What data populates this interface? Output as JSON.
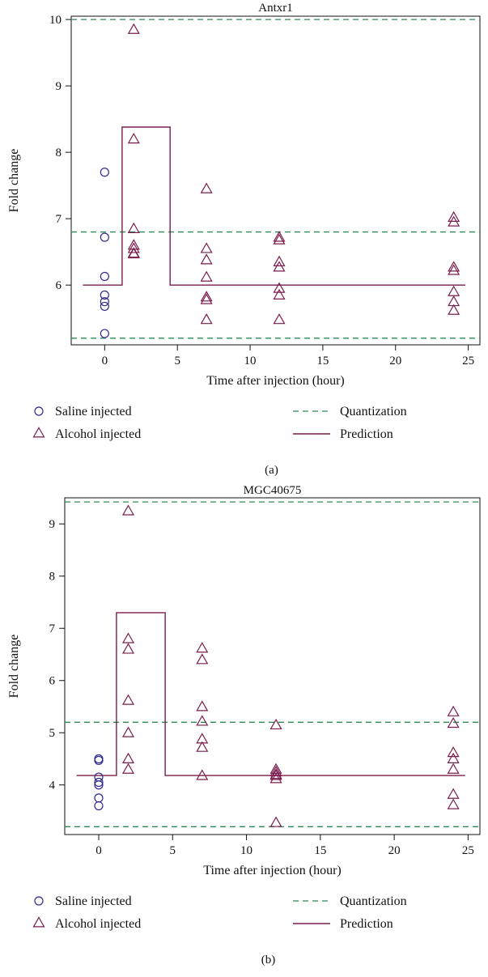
{
  "chart_data": [
    {
      "type": "scatter",
      "title": "Antxr1",
      "xlabel": "Time after injection (hour)",
      "ylabel": "Fold change",
      "xlim": [
        -2.3,
        25.8
      ],
      "ylim": [
        5.1,
        10.05
      ],
      "xticks": [
        0,
        5,
        10,
        15,
        20,
        25
      ],
      "yticks": [
        6,
        7,
        8,
        9,
        10
      ],
      "series": [
        {
          "name": "Saline injected",
          "marker": "circle",
          "color": "#2e2a8f",
          "points": [
            [
              0,
              7.7
            ],
            [
              0,
              6.72
            ],
            [
              0,
              6.13
            ],
            [
              0,
              5.85
            ],
            [
              0,
              5.75
            ],
            [
              0,
              5.68
            ],
            [
              0,
              5.27
            ]
          ]
        },
        {
          "name": "Alcohol injected",
          "marker": "triangle",
          "color": "#7a1d4e",
          "points": [
            [
              2,
              9.85
            ],
            [
              2,
              8.2
            ],
            [
              2,
              6.85
            ],
            [
              2,
              6.6
            ],
            [
              2,
              6.55
            ],
            [
              2,
              6.48
            ],
            [
              2,
              6.47
            ],
            [
              7,
              7.45
            ],
            [
              7,
              6.55
            ],
            [
              7,
              6.38
            ],
            [
              7,
              6.12
            ],
            [
              7,
              5.82
            ],
            [
              7,
              5.78
            ],
            [
              7,
              5.48
            ],
            [
              12,
              6.72
            ],
            [
              12,
              6.68
            ],
            [
              12,
              6.35
            ],
            [
              12,
              6.27
            ],
            [
              12,
              5.95
            ],
            [
              12,
              5.85
            ],
            [
              12,
              5.48
            ],
            [
              24,
              7.02
            ],
            [
              24,
              6.95
            ],
            [
              24,
              6.27
            ],
            [
              24,
              6.22
            ],
            [
              24,
              5.9
            ],
            [
              24,
              5.75
            ],
            [
              24,
              5.62
            ]
          ]
        }
      ],
      "quantization": {
        "name": "Quantization",
        "color": "#2e8b57",
        "levels": [
          5.2,
          6.8,
          10.0
        ]
      },
      "prediction": {
        "name": "Prediction",
        "color": "#7a1d4e",
        "steps": [
          [
            -1.5,
            6.0
          ],
          [
            1.2,
            6.0
          ],
          [
            1.2,
            8.38
          ],
          [
            4.5,
            8.38
          ],
          [
            4.5,
            6.0
          ],
          [
            24.8,
            6.0
          ]
        ]
      },
      "caption": "(a)"
    },
    {
      "type": "scatter",
      "title": "MGC40675",
      "xlabel": "Time after injection (hour)",
      "ylabel": "Fold change",
      "xlim": [
        -2.3,
        25.8
      ],
      "ylim": [
        3.05,
        9.5
      ],
      "xticks": [
        0,
        5,
        10,
        15,
        20,
        25
      ],
      "yticks": [
        4,
        5,
        6,
        7,
        8,
        9
      ],
      "series": [
        {
          "name": "Saline injected",
          "marker": "circle",
          "color": "#2e2a8f",
          "points": [
            [
              0,
              4.5
            ],
            [
              0,
              4.47
            ],
            [
              0,
              4.15
            ],
            [
              0,
              4.05
            ],
            [
              0,
              4.0
            ],
            [
              0,
              3.75
            ],
            [
              0,
              3.6
            ]
          ]
        },
        {
          "name": "Alcohol injected",
          "marker": "triangle",
          "color": "#7a1d4e",
          "points": [
            [
              2,
              9.25
            ],
            [
              2,
              6.8
            ],
            [
              2,
              6.6
            ],
            [
              2,
              5.62
            ],
            [
              2,
              5.0
            ],
            [
              2,
              4.5
            ],
            [
              2,
              4.3
            ],
            [
              7,
              6.62
            ],
            [
              7,
              6.4
            ],
            [
              7,
              5.5
            ],
            [
              7,
              5.22
            ],
            [
              7,
              4.88
            ],
            [
              7,
              4.72
            ],
            [
              7,
              4.18
            ],
            [
              12,
              5.15
            ],
            [
              12,
              4.3
            ],
            [
              12,
              4.25
            ],
            [
              12,
              4.2
            ],
            [
              12,
              4.18
            ],
            [
              12,
              4.12
            ],
            [
              12,
              3.28
            ],
            [
              24,
              5.4
            ],
            [
              24,
              5.18
            ],
            [
              24,
              4.62
            ],
            [
              24,
              4.5
            ],
            [
              24,
              4.3
            ],
            [
              24,
              3.82
            ],
            [
              24,
              3.62
            ]
          ]
        }
      ],
      "quantization": {
        "name": "Quantization",
        "color": "#2e8b57",
        "levels": [
          3.2,
          5.2,
          9.42
        ]
      },
      "prediction": {
        "name": "Prediction",
        "color": "#7a1d4e",
        "steps": [
          [
            -1.5,
            4.18
          ],
          [
            1.2,
            4.18
          ],
          [
            1.2,
            7.3
          ],
          [
            4.5,
            7.3
          ],
          [
            4.5,
            4.18
          ],
          [
            24.8,
            4.18
          ]
        ]
      },
      "caption": "(b)"
    }
  ]
}
